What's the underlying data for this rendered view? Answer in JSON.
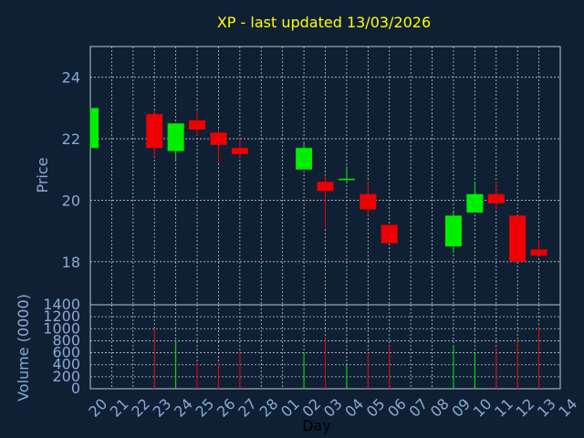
{
  "chart_data": {
    "type": "candlestick",
    "title": "XP - last updated 13/03/2026",
    "xlabel": "Day",
    "price_panel": {
      "ylabel": "Price",
      "ylim": [
        16.6,
        25.0
      ],
      "yticks": [
        18,
        20,
        22,
        24
      ],
      "grid": true
    },
    "volume_panel": {
      "ylabel": "Volume (0000)",
      "ylim": [
        0,
        1400
      ],
      "yticks": [
        0,
        200,
        400,
        600,
        800,
        1000,
        1200,
        1400
      ],
      "grid": true
    },
    "x_tick_labels": [
      "20",
      "21",
      "22",
      "23",
      "24",
      "25",
      "26",
      "27",
      "28",
      "01",
      "02",
      "03",
      "04",
      "05",
      "06",
      "07",
      "08",
      "09",
      "10",
      "11",
      "12",
      "13",
      "14"
    ],
    "candles": [
      {
        "day": "20",
        "open": 21.7,
        "close": 23.0,
        "high": 23.0,
        "low": 21.7,
        "volume": 0
      },
      {
        "day": "23",
        "open": 22.8,
        "close": 21.7,
        "high": 22.9,
        "low": 21.4,
        "volume": 1000
      },
      {
        "day": "24",
        "open": 21.6,
        "close": 22.5,
        "high": 22.5,
        "low": 21.3,
        "volume": 800
      },
      {
        "day": "25",
        "open": 22.6,
        "close": 22.3,
        "high": 22.9,
        "low": 22.1,
        "volume": 440
      },
      {
        "day": "26",
        "open": 22.2,
        "close": 21.8,
        "high": 22.3,
        "low": 21.2,
        "volume": 420
      },
      {
        "day": "27",
        "open": 21.7,
        "close": 21.5,
        "high": 22.0,
        "low": 21.4,
        "volume": 620
      },
      {
        "day": "02",
        "open": 21.0,
        "close": 21.7,
        "high": 21.9,
        "low": 21.0,
        "volume": 600
      },
      {
        "day": "03",
        "open": 20.6,
        "close": 20.3,
        "high": 20.8,
        "low": 19.1,
        "volume": 840
      },
      {
        "day": "04",
        "open": 20.7,
        "close": 20.7,
        "high": 21.1,
        "low": 20.6,
        "volume": 400
      },
      {
        "day": "05",
        "open": 20.2,
        "close": 19.7,
        "high": 20.6,
        "low": 19.5,
        "volume": 600
      },
      {
        "day": "06",
        "open": 19.2,
        "close": 18.6,
        "high": 19.2,
        "low": 18.6,
        "volume": 720
      },
      {
        "day": "09",
        "open": 18.5,
        "close": 19.5,
        "high": 19.6,
        "low": 18.3,
        "volume": 700
      },
      {
        "day": "10",
        "open": 19.6,
        "close": 20.2,
        "high": 20.6,
        "low": 19.6,
        "volume": 580
      },
      {
        "day": "11",
        "open": 20.2,
        "close": 19.9,
        "high": 20.6,
        "low": 19.7,
        "volume": 680
      },
      {
        "day": "12",
        "open": 19.5,
        "close": 18.0,
        "high": 19.5,
        "low": 18.0,
        "volume": 800
      },
      {
        "day": "13",
        "open": 18.4,
        "close": 18.2,
        "high": 18.7,
        "low": 18.2,
        "volume": 1040
      }
    ]
  },
  "colors": {
    "background": "#0f2035",
    "axis_text": "#8aaad2",
    "title_text": "#ffff00",
    "grid": "#b8c3d0",
    "frame": "#b8c3d0",
    "up": "#00ee00",
    "down": "#ee0000"
  }
}
